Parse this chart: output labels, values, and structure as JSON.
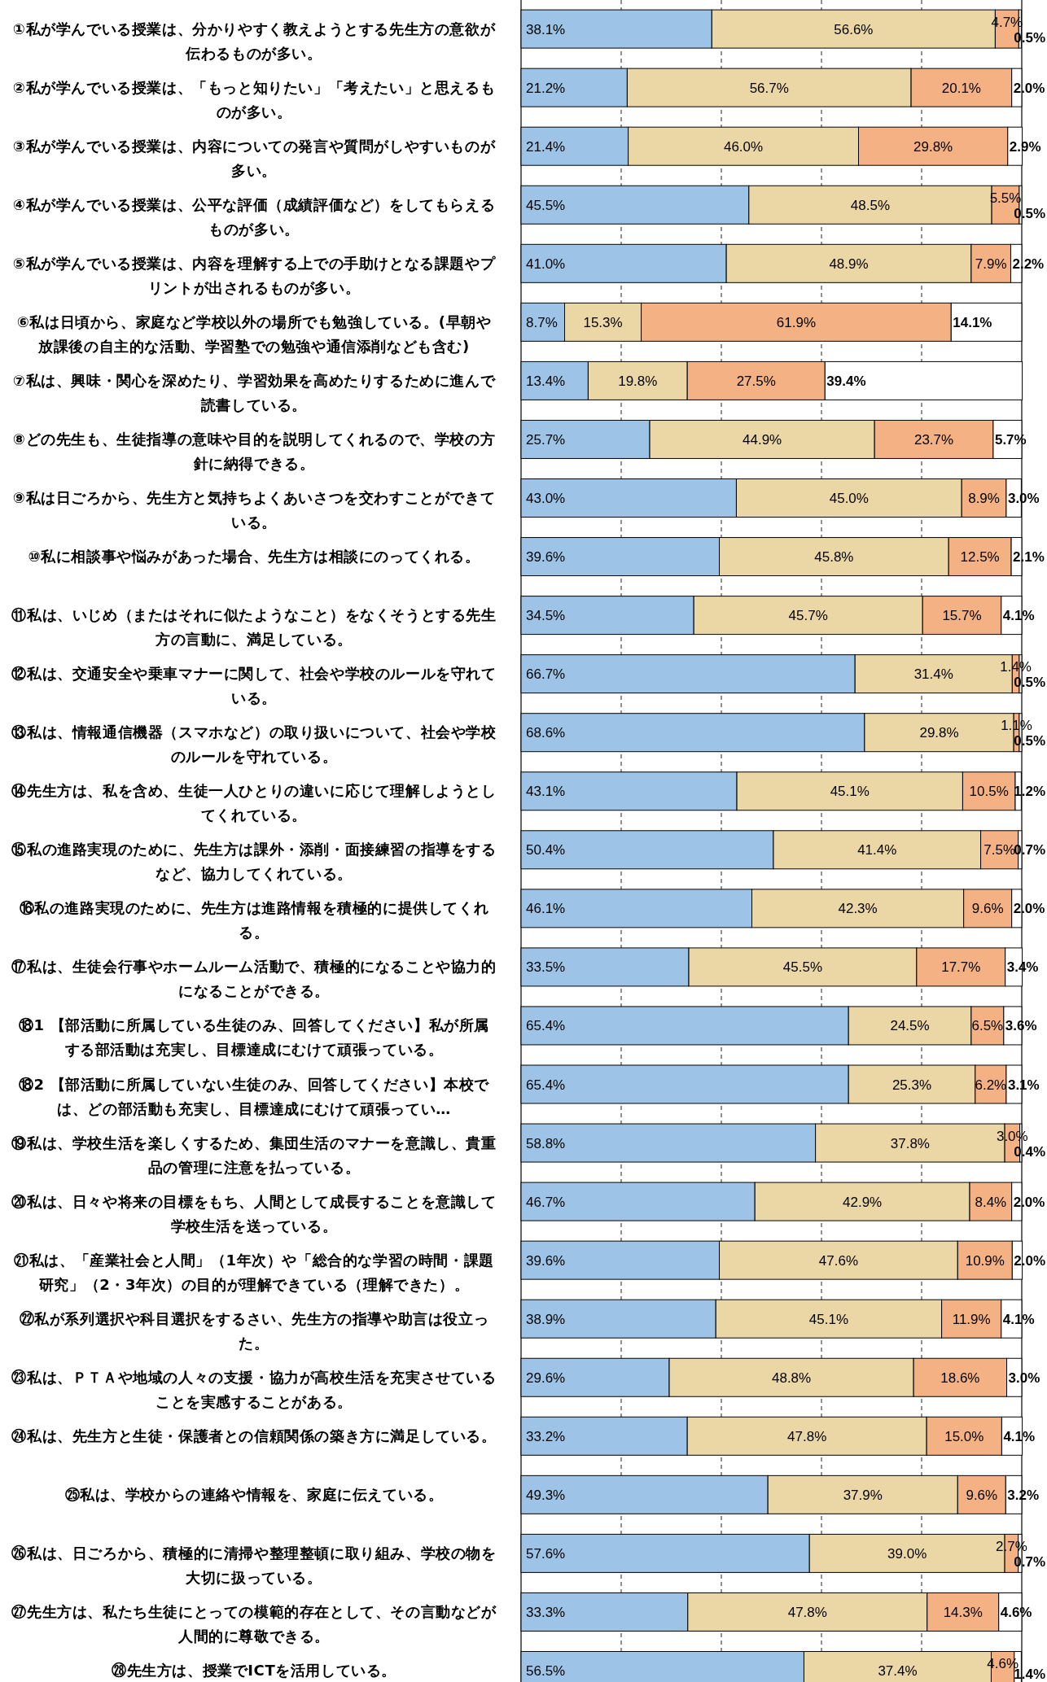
{
  "chart_data": {
    "type": "bar",
    "orientation": "horizontal",
    "stacked": true,
    "tick_labels": "y",
    "grid": "x",
    "xlim": [
      0,
      100
    ],
    "xticks": [
      {
        "value": 0,
        "label": null
      },
      {
        "value": 20,
        "label": null
      },
      {
        "value": 40,
        "label": null
      },
      {
        "value": 60,
        "label": null
      },
      {
        "value": 80,
        "label": null
      },
      {
        "value": 100,
        "label": null
      }
    ],
    "categories": [
      "①私が学んでいる授業は、分かりやすく教えようとする先生方の意欲が伝わるものが多い。",
      "②私が学んでいる授業は、「もっと知りたい」「考えたい」と思えるものが多い。",
      "③私が学んでいる授業は、内容についての発言や質問がしやすいものが多い。",
      "④私が学んでいる授業は、公平な評価（成績評価など）をしてもらえるものが多い。",
      "⑤私が学んでいる授業は、内容を理解する上での手助けとなる課題やプリントが出されるものが多い。",
      "⑥私は日頃から、家庭など学校以外の場所でも勉強している。(早朝や放課後の自主的な活動、学習塾での勉強や通信添削なども含む)",
      "⑦私は、興味・関心を深めたり、学習効果を高めたりするために進んで読書している。",
      "⑧どの先生も、生徒指導の意味や目的を説明してくれるので、学校の方針に納得できる。",
      "⑨私は日ごろから、先生方と気持ちよくあいさつを交わすことができている。",
      "⑩私に相談事や悩みがあった場合、先生方は相談にのってくれる。",
      "⑪私は、いじめ（またはそれに似たようなこと）をなくそうとする先生方の言動に、満足している。",
      "⑫私は、交通安全や乗車マナーに関して、社会や学校のルールを守れている。",
      "⑬私は、情報通信機器（スマホなど）の取り扱いについて、社会や学校のルールを守れている。",
      "⑭先生方は、私を含め、生徒一人ひとりの違いに応じて理解しようとしてくれている。",
      "⑮私の進路実現のために、先生方は課外・添削・面接練習の指導をするなど、協力してくれている。",
      "⑯私の進路実現のために、先生方は進路情報を積極的に提供してくれる。",
      "⑰私は、生徒会行事やホームルーム活動で、積極的になることや協力的になることができる。",
      "⑱1 【部活動に所属している生徒のみ、回答してください】私が所属する部活動は充実し、目標達成にむけて頑張っている。",
      "⑱2 【部活動に所属していない生徒のみ、回答してください】本校では、どの部活動も充実し、目標達成にむけて頑張ってい…",
      "⑲私は、学校生活を楽しくするため、集団生活のマナーを意識し、貴重品の管理に注意を払っている。",
      "⑳私は、日々や将来の目標をもち、人間として成長することを意識して学校生活を送っている。",
      "㉑私は、「産業社会と人間」（1年次）や「総合的な学習の時間・課題研究」（2・3年次）の目的が理解できている（理解できた）。",
      "㉒私が系列選択や科目選択をするさい、先生方の指導や助言は役立った。",
      "㉓私は、ＰＴＡや地域の人々の支援・協力が高校生活を充実させていることを実感することがある。",
      "㉔私は、先生方と生徒・保護者との信頼関係の築き方に満足している。",
      "㉕私は、学校からの連絡や情報を、家庭に伝えている。",
      "㉖私は、日ごろから、積極的に清掃や整理整頓に取り組み、学校の物を大切に扱っている。",
      "㉗先生方は、私たち生徒にとっての模範的存在として、その言動などが人間的に尊敬できる。",
      "㉘先生方は、授業でICTを活用している。"
    ],
    "series": [
      {
        "color": "#9dc3e6",
        "values": [
          38.1,
          21.2,
          21.4,
          45.5,
          41.0,
          8.7,
          13.4,
          25.7,
          43.0,
          39.6,
          34.5,
          66.7,
          68.6,
          43.1,
          50.4,
          46.1,
          33.5,
          65.4,
          65.4,
          58.8,
          46.7,
          39.6,
          38.9,
          29.6,
          33.2,
          49.3,
          57.6,
          33.3,
          56.5
        ],
        "value_labels": [
          "38.1%",
          "21.2%",
          "21.4%",
          "45.5%",
          "41.0%",
          "8.7%",
          "13.4%",
          "25.7%",
          "43.0%",
          "39.6%",
          "34.5%",
          "66.7%",
          "68.6%",
          "43.1%",
          "50.4%",
          "46.1%",
          "33.5%",
          "65.4%",
          "65.4%",
          "58.8%",
          "46.7%",
          "39.6%",
          "38.9%",
          "29.6%",
          "33.2%",
          "49.3%",
          "57.6%",
          "33.3%",
          "56.5%"
        ]
      },
      {
        "color": "#ebd6a6",
        "values": [
          56.6,
          56.7,
          46.0,
          48.5,
          48.9,
          15.3,
          19.8,
          44.9,
          45.0,
          45.8,
          45.7,
          31.4,
          29.8,
          45.1,
          41.4,
          42.3,
          45.5,
          24.5,
          25.3,
          37.8,
          42.9,
          47.6,
          45.1,
          48.8,
          47.8,
          37.9,
          39.0,
          47.8,
          37.4
        ],
        "value_labels": [
          "56.6%",
          "56.7%",
          "46.0%",
          "48.5%",
          "48.9%",
          "15.3%",
          "19.8%",
          "44.9%",
          "45.0%",
          "45.8%",
          "45.7%",
          "31.4%",
          "29.8%",
          "45.1%",
          "41.4%",
          "42.3%",
          "45.5%",
          "24.5%",
          "25.3%",
          "37.8%",
          "42.9%",
          "47.6%",
          "45.1%",
          "48.8%",
          "47.8%",
          "37.9%",
          "39.0%",
          "47.8%",
          "37.4%"
        ]
      },
      {
        "color": "#f4b183",
        "values": [
          4.7,
          20.1,
          29.8,
          5.5,
          7.9,
          61.9,
          27.5,
          23.7,
          8.9,
          12.5,
          15.7,
          1.4,
          1.1,
          10.5,
          7.5,
          9.6,
          17.7,
          6.5,
          6.2,
          3.0,
          8.4,
          10.9,
          11.9,
          18.6,
          15.0,
          9.6,
          2.7,
          14.3,
          4.6
        ],
        "value_labels": [
          "4.7%",
          "20.1%",
          "29.8%",
          "5.5%",
          "7.9%",
          "61.9%",
          "27.5%",
          "23.7%",
          "8.9%",
          "12.5%",
          "15.7%",
          "1.4%",
          "1.1%",
          "10.5%",
          "7.5%",
          "9.6%",
          "17.7%",
          "6.5%",
          "6.2%",
          "3.0%",
          "8.4%",
          "10.9%",
          "11.9%",
          "18.6%",
          "15.0%",
          "9.6%",
          "2.7%",
          "14.3%",
          "4.6%"
        ]
      },
      {
        "color": "#ffffff",
        "values": [
          0.5,
          2.0,
          2.9,
          0.5,
          2.2,
          14.1,
          39.4,
          5.7,
          3.0,
          2.1,
          4.1,
          0.5,
          0.5,
          1.2,
          0.7,
          2.0,
          3.4,
          3.6,
          3.1,
          0.4,
          2.0,
          2.0,
          4.1,
          3.0,
          4.1,
          3.2,
          0.7,
          4.6,
          1.4
        ],
        "value_labels": [
          "0.5%",
          "2.0%",
          "2.9%",
          "0.5%",
          "2.2%",
          "14.1%",
          "39.4%",
          "5.7%",
          "3.0%",
          "2.1%",
          "4.1%",
          "0.5%",
          "0.5%",
          "1.2%",
          "0.7%",
          "2.0%",
          "3.4%",
          "3.6%",
          "3.1%",
          "0.4%",
          "2.0%",
          "2.0%",
          "4.1%",
          "3.0%",
          "4.1%",
          "3.2%",
          "0.7%",
          "4.6%",
          "1.4%"
        ]
      }
    ]
  }
}
